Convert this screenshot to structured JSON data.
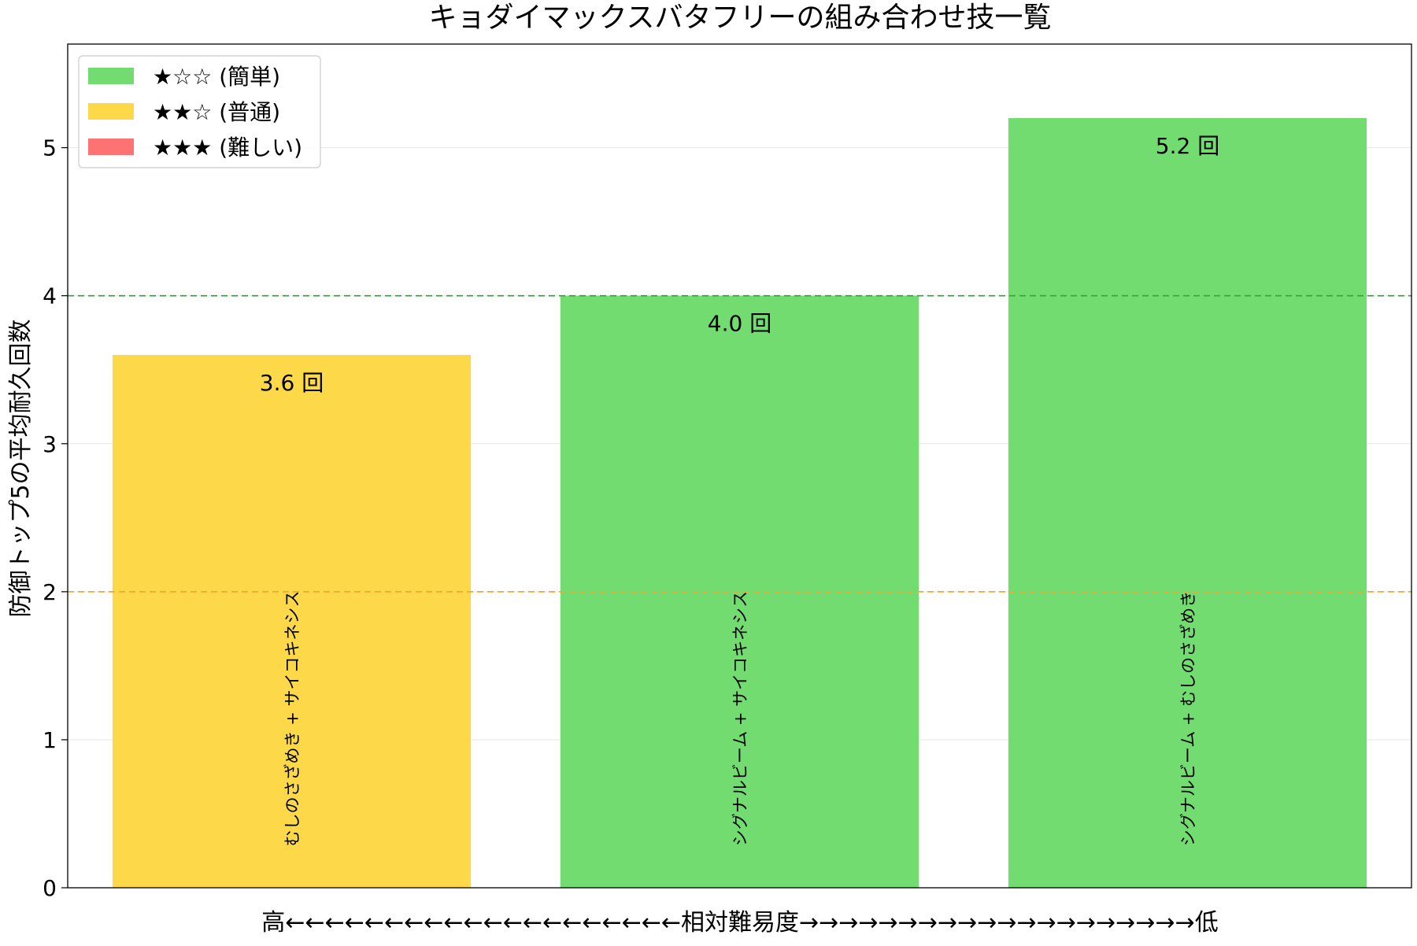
{
  "chart_data": {
    "type": "bar",
    "title": "キョダイマックスバタフリーの組み合わせ技一覧",
    "ylabel": "防御トップ5の平均耐久回数",
    "xlabel": "高←←←←←←←←←←←←←←←←←←←←相対難易度→→→→→→→→→→→→→→→→→→→→低",
    "ylim": [
      0,
      5.7
    ],
    "yticks": [
      "0",
      "1",
      "2",
      "3",
      "4",
      "5"
    ],
    "grid": "horizontal",
    "legend_position": "top-left",
    "categories": [
      "むしのさざめき + サイコキネシス",
      "シグナルビーム + サイコキネシス",
      "シグナルビーム + むしのさざめき"
    ],
    "values": [
      3.6,
      4.0,
      5.2
    ],
    "value_labels": [
      "3.6 回",
      "4.0 回",
      "5.2 回"
    ],
    "bar_colors": [
      "#fdd94a",
      "#72dc70",
      "#72dc70"
    ],
    "reference_lines": [
      {
        "y": 4,
        "color": "#3fa53f",
        "style": "dashed"
      },
      {
        "y": 2,
        "color": "#f0a830",
        "style": "dashed"
      }
    ],
    "legend": [
      {
        "label": "★☆☆ (簡単)",
        "color": "#72dc70"
      },
      {
        "label": "★★☆ (普通)",
        "color": "#fdd94a"
      },
      {
        "label": "★★★ (難しい)",
        "color": "#fd7272"
      }
    ]
  }
}
